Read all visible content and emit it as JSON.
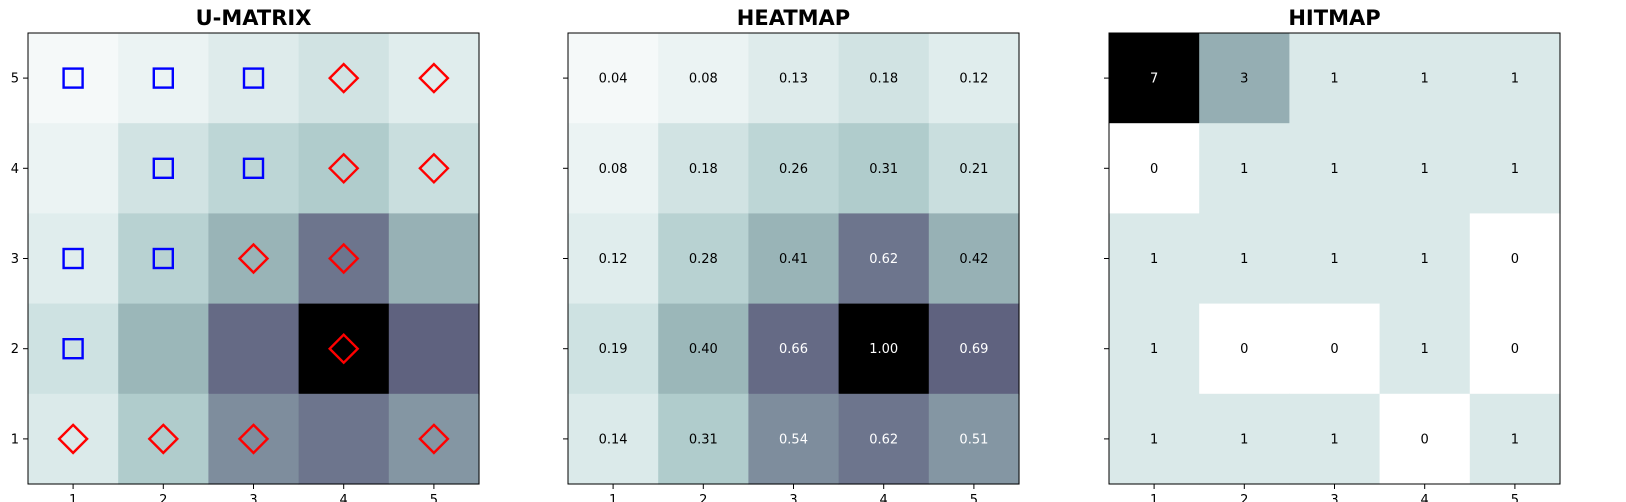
{
  "chart_data": [
    {
      "type": "heatmap",
      "title": "U-MATRIX",
      "x_ticks": [
        "1",
        "2",
        "3",
        "4",
        "5"
      ],
      "y_ticks": [
        "1",
        "2",
        "3",
        "4",
        "5"
      ],
      "xlim": [
        0.5,
        5.5
      ],
      "ylim": [
        0.5,
        5.5
      ],
      "grid": false,
      "colormap": "bone_r",
      "rows_top_to_bottom": [
        [
          0.04,
          0.08,
          0.13,
          0.18,
          0.12
        ],
        [
          0.08,
          0.18,
          0.26,
          0.31,
          0.21
        ],
        [
          0.12,
          0.28,
          0.41,
          0.62,
          0.42
        ],
        [
          0.19,
          0.4,
          0.66,
          1.0,
          0.69
        ],
        [
          0.14,
          0.31,
          0.54,
          0.62,
          0.51
        ]
      ],
      "markers": [
        {
          "x": 1,
          "y": 5,
          "shape": "square"
        },
        {
          "x": 2,
          "y": 5,
          "shape": "square"
        },
        {
          "x": 3,
          "y": 5,
          "shape": "square"
        },
        {
          "x": 4,
          "y": 5,
          "shape": "diamond"
        },
        {
          "x": 5,
          "y": 5,
          "shape": "diamond"
        },
        {
          "x": 2,
          "y": 4,
          "shape": "square"
        },
        {
          "x": 3,
          "y": 4,
          "shape": "square"
        },
        {
          "x": 4,
          "y": 4,
          "shape": "diamond"
        },
        {
          "x": 5,
          "y": 4,
          "shape": "diamond"
        },
        {
          "x": 1,
          "y": 3,
          "shape": "square"
        },
        {
          "x": 2,
          "y": 3,
          "shape": "square"
        },
        {
          "x": 3,
          "y": 3,
          "shape": "diamond"
        },
        {
          "x": 4,
          "y": 3,
          "shape": "diamond"
        },
        {
          "x": 1,
          "y": 2,
          "shape": "square"
        },
        {
          "x": 4,
          "y": 2,
          "shape": "diamond"
        },
        {
          "x": 1,
          "y": 1,
          "shape": "diamond"
        },
        {
          "x": 2,
          "y": 1,
          "shape": "diamond"
        },
        {
          "x": 3,
          "y": 1,
          "shape": "diamond"
        },
        {
          "x": 5,
          "y": 1,
          "shape": "diamond"
        }
      ],
      "marker_colors": {
        "square": "#0000ff",
        "diamond": "#ff0000"
      }
    },
    {
      "type": "heatmap",
      "title": "HEATMAP",
      "x_ticks": [
        "1",
        "2",
        "3",
        "4",
        "5"
      ],
      "y_ticks": [
        "1",
        "2",
        "3",
        "4",
        "5"
      ],
      "xlim": [
        0.5,
        5.5
      ],
      "ylim": [
        0.5,
        5.5
      ],
      "grid": false,
      "colormap": "bone_r",
      "annotated": true,
      "value_format": "2 decimals",
      "rows_top_to_bottom": [
        [
          0.04,
          0.08,
          0.13,
          0.18,
          0.12
        ],
        [
          0.08,
          0.18,
          0.26,
          0.31,
          0.21
        ],
        [
          0.12,
          0.28,
          0.41,
          0.62,
          0.42
        ],
        [
          0.19,
          0.4,
          0.66,
          1.0,
          0.69
        ],
        [
          0.14,
          0.31,
          0.54,
          0.62,
          0.51
        ]
      ]
    },
    {
      "type": "heatmap",
      "title": "HITMAP",
      "x_ticks": [
        "1",
        "2",
        "3",
        "4",
        "5"
      ],
      "y_ticks": [
        "1",
        "2",
        "3",
        "4",
        "5"
      ],
      "xlim": [
        0.5,
        5.5
      ],
      "ylim": [
        0.5,
        5.5
      ],
      "grid": false,
      "colormap": "bone_r",
      "annotated": true,
      "value_format": "integer",
      "rows_top_to_bottom": [
        [
          7,
          3,
          1,
          1,
          1
        ],
        [
          0,
          1,
          1,
          1,
          1
        ],
        [
          1,
          1,
          1,
          1,
          0
        ],
        [
          1,
          0,
          0,
          1,
          0
        ],
        [
          1,
          1,
          1,
          0,
          1
        ]
      ]
    }
  ]
}
